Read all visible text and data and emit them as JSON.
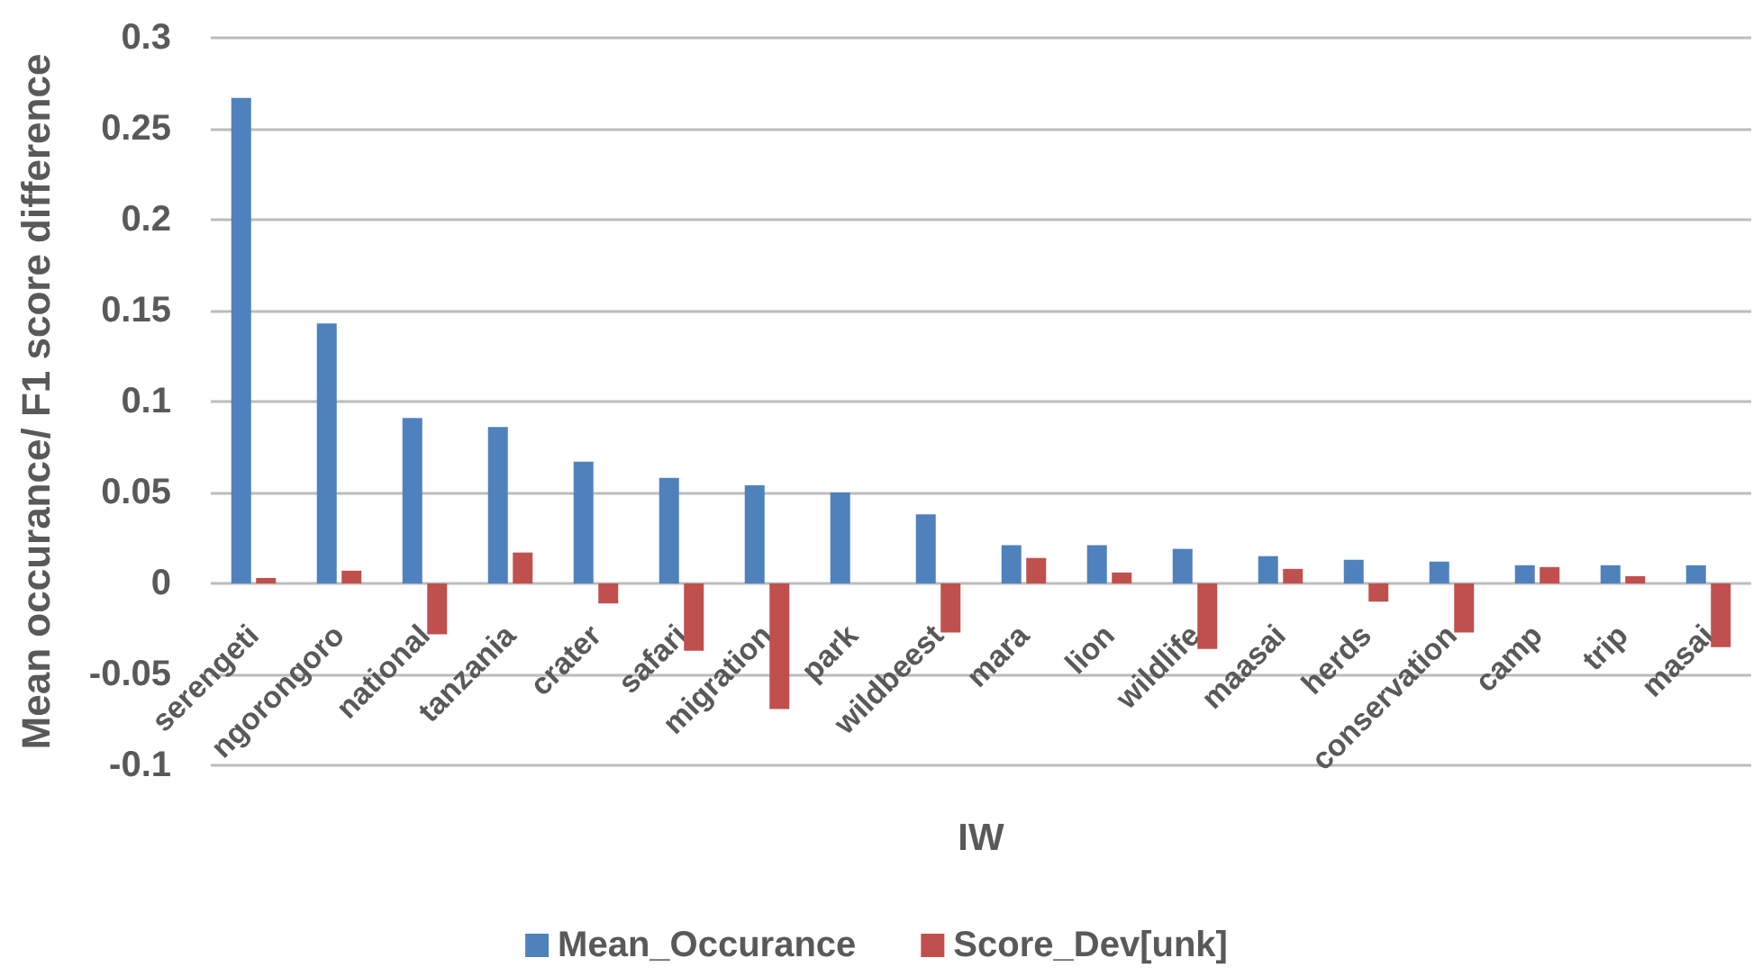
{
  "chart_data": {
    "type": "bar",
    "xlabel": "IW",
    "ylabel": "Mean occurance/ F1 score difference",
    "categories": [
      "serengeti",
      "ngorongoro",
      "national",
      "tanzania",
      "crater",
      "safari",
      "migration",
      "park",
      "wildbeest",
      "mara",
      "lion",
      "wildlife",
      "maasai",
      "herds",
      "conservation",
      "camp",
      "trip",
      "masai"
    ],
    "series": [
      {
        "name": "Mean_Occurance",
        "color": "#4f81bd",
        "values": [
          0.267,
          0.143,
          0.091,
          0.086,
          0.067,
          0.058,
          0.054,
          0.05,
          0.038,
          0.021,
          0.021,
          0.019,
          0.015,
          0.013,
          0.012,
          0.01,
          0.01,
          0.01
        ]
      },
      {
        "name": "Score_Dev[unk]",
        "color": "#c0504d",
        "values": [
          0.003,
          0.007,
          -0.028,
          0.017,
          -0.011,
          -0.037,
          -0.069,
          null,
          -0.027,
          0.014,
          0.006,
          -0.036,
          0.008,
          -0.01,
          -0.027,
          0.009,
          0.004,
          -0.035
        ]
      }
    ],
    "ylim": [
      -0.1,
      0.3
    ],
    "yticks": [
      -0.1,
      -0.05,
      0,
      0.05,
      0.1,
      0.15,
      0.2,
      0.25,
      0.3
    ],
    "grid": "y",
    "legend": "bottom"
  }
}
